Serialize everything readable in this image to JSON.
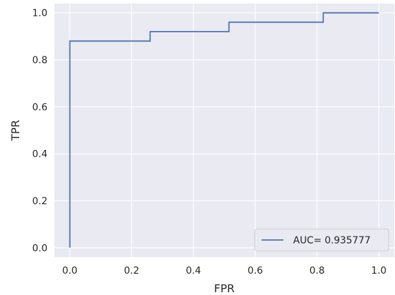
{
  "chart_data": {
    "type": "line",
    "xlabel": "FPR",
    "ylabel": "TPR",
    "xlim": [
      -0.05,
      1.05
    ],
    "ylim": [
      -0.04,
      1.04
    ],
    "x_ticks": [
      "0.0",
      "0.2",
      "0.4",
      "0.6",
      "0.8",
      "1.0"
    ],
    "y_ticks": [
      "0.0",
      "0.2",
      "0.4",
      "0.6",
      "0.8",
      "1.0"
    ],
    "grid": true,
    "legend_position": "lower-right",
    "series": [
      {
        "name": "AUC= 0.935777",
        "color": "#4c72b0",
        "x": [
          0.0,
          0.0,
          0.26,
          0.26,
          0.515,
          0.515,
          0.82,
          0.82,
          1.0
        ],
        "y": [
          0.0,
          0.88,
          0.88,
          0.92,
          0.92,
          0.96,
          0.96,
          1.0,
          1.0
        ]
      }
    ]
  },
  "colors": {
    "plot_background": "#eaeaf2",
    "grid": "#ffffff",
    "line": "#4c72b0"
  }
}
